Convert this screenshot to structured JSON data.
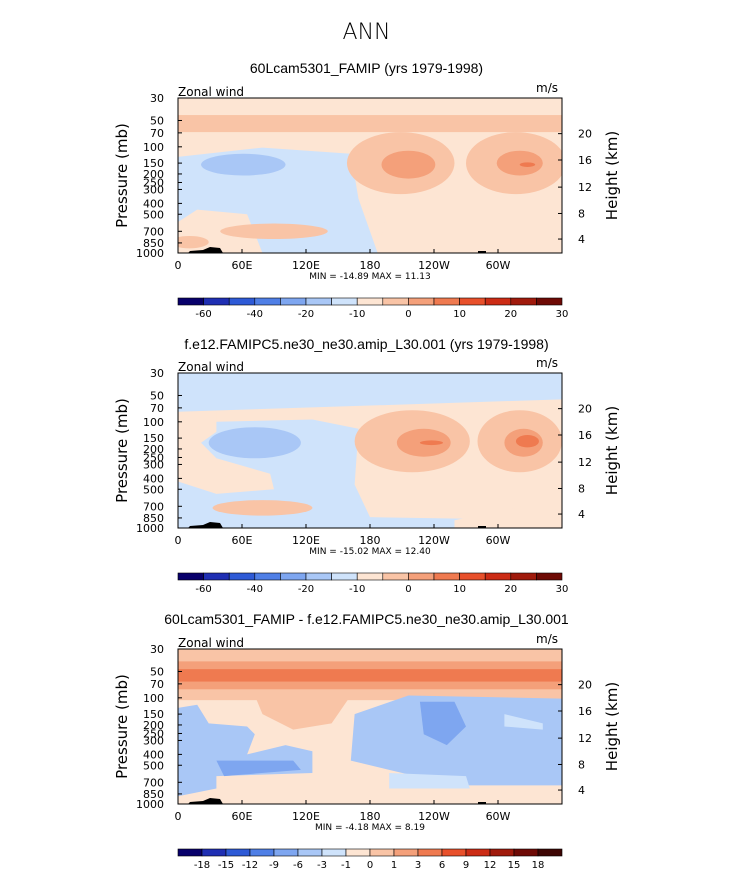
{
  "figure": {
    "suptitle": "ANN"
  },
  "chart_data": [
    {
      "type": "heatmap",
      "title": "60Lcam5301_FAMIP (yrs 1979-1998)",
      "variable": "Zonal wind",
      "units": "m/s",
      "ylabel": "Pressure (mb)",
      "y2label": "Height (km)",
      "xticks": [
        "0",
        "60E",
        "120E",
        "180",
        "120W",
        "60W"
      ],
      "yticks": [
        "30",
        "50",
        "70",
        "100",
        "150",
        "200",
        "250",
        "300",
        "400",
        "500",
        "700",
        "850",
        "1000"
      ],
      "y2ticks": [
        "20",
        "16",
        "12",
        "8",
        "4"
      ],
      "min_max_text": "MIN = -14.89   MAX =  11.13",
      "stats": {
        "min": -14.89,
        "max": 11.13
      },
      "colorbar_labels": [
        "-60",
        "-40",
        "-20",
        "-10",
        "0",
        "10",
        "20",
        "30"
      ],
      "colorbar_colors": [
        "#08006b",
        "#1f2fb3",
        "#2e5ad6",
        "#4f7fe6",
        "#7ea6f0",
        "#a9c7f6",
        "#cfe3fb",
        "#fde5d3",
        "#f9c4a6",
        "#f4a07a",
        "#ef7a50",
        "#e8502b",
        "#cc2c15",
        "#a01a0c",
        "#6e0a05"
      ]
    },
    {
      "type": "heatmap",
      "title": "f.e12.FAMIPC5.ne30_ne30.amip_L30.001 (yrs 1979-1998)",
      "variable": "Zonal wind",
      "units": "m/s",
      "ylabel": "Pressure (mb)",
      "y2label": "Height (km)",
      "xticks": [
        "0",
        "60E",
        "120E",
        "180",
        "120W",
        "60W"
      ],
      "yticks": [
        "30",
        "50",
        "70",
        "100",
        "150",
        "200",
        "250",
        "300",
        "400",
        "500",
        "700",
        "850",
        "1000"
      ],
      "y2ticks": [
        "20",
        "16",
        "12",
        "8",
        "4"
      ],
      "min_max_text": "MIN = -15.02   MAX =  12.40",
      "stats": {
        "min": -15.02,
        "max": 12.4
      },
      "colorbar_labels": [
        "-60",
        "-40",
        "-20",
        "-10",
        "0",
        "10",
        "20",
        "30"
      ],
      "colorbar_colors": [
        "#08006b",
        "#1f2fb3",
        "#2e5ad6",
        "#4f7fe6",
        "#7ea6f0",
        "#a9c7f6",
        "#cfe3fb",
        "#fde5d3",
        "#f9c4a6",
        "#f4a07a",
        "#ef7a50",
        "#e8502b",
        "#cc2c15",
        "#a01a0c",
        "#6e0a05"
      ]
    },
    {
      "type": "heatmap",
      "title": "60Lcam5301_FAMIP - f.e12.FAMIPC5.ne30_ne30.amip_L30.001",
      "variable": "Zonal wind",
      "units": "m/s",
      "ylabel": "Pressure (mb)",
      "y2label": "Height (km)",
      "xticks": [
        "0",
        "60E",
        "120E",
        "180",
        "120W",
        "60W"
      ],
      "yticks": [
        "30",
        "50",
        "70",
        "100",
        "150",
        "200",
        "250",
        "300",
        "400",
        "500",
        "700",
        "850",
        "1000"
      ],
      "y2ticks": [
        "20",
        "16",
        "12",
        "8",
        "4"
      ],
      "min_max_text": "MIN =  -4.18   MAX =   8.19",
      "stats": {
        "min": -4.18,
        "max": 8.19
      },
      "colorbar_labels": [
        "-18",
        "-15",
        "-12",
        "-9",
        "-6",
        "-3",
        "-1",
        "0",
        "1",
        "3",
        "6",
        "9",
        "12",
        "15",
        "18"
      ],
      "colorbar_colors": [
        "#08006b",
        "#1f2fb3",
        "#2e5ad6",
        "#4f7fe6",
        "#7ea6f0",
        "#a9c7f6",
        "#cfe3fb",
        "#fde5d3",
        "#f9c4a6",
        "#f4a07a",
        "#ef7a50",
        "#e8502b",
        "#cc2c15",
        "#a01a0c",
        "#6e0a05",
        "#3d0503"
      ]
    }
  ]
}
